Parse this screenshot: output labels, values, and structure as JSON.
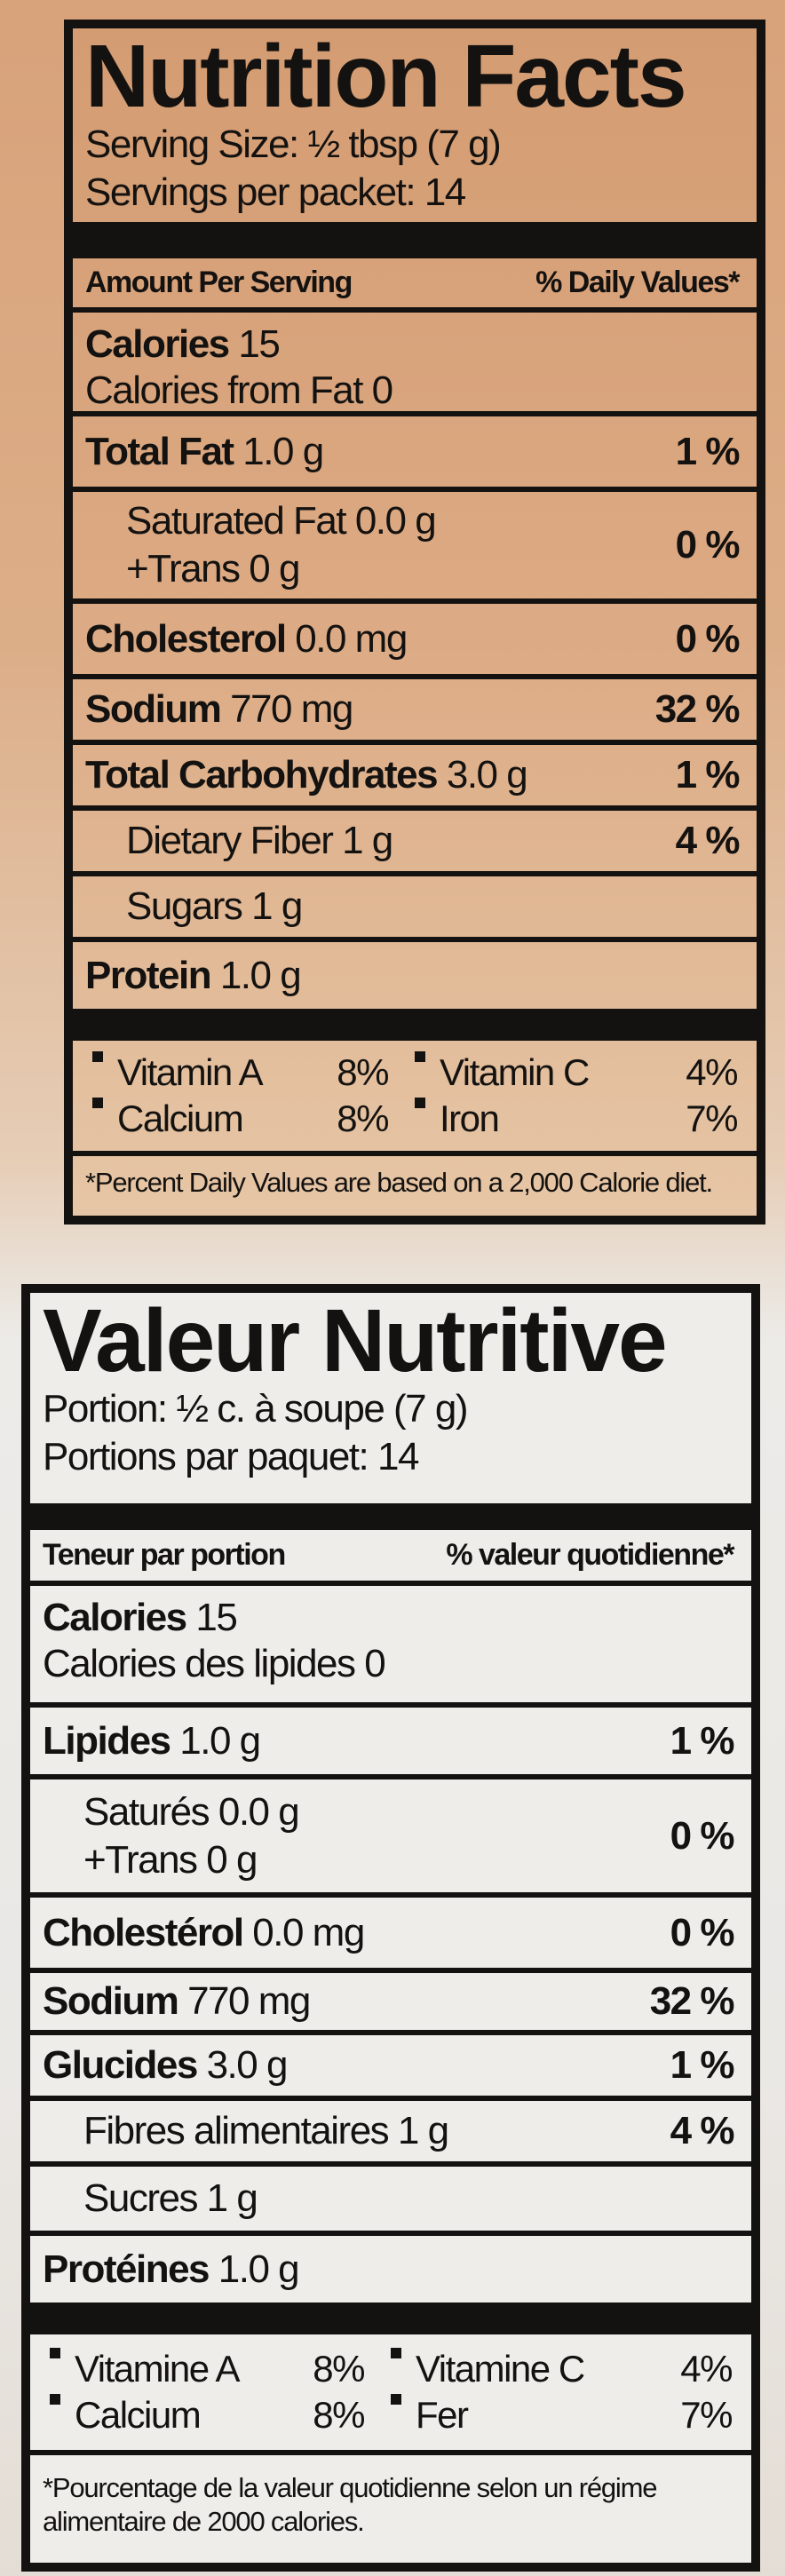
{
  "en": {
    "title": "Nutrition Facts",
    "serving_size": "Serving Size: ½ tbsp (7 g)",
    "servings": "Servings per packet: 14",
    "col_amount": "Amount Per Serving",
    "col_dv": "% Daily Values*",
    "calories": "Calories",
    "calories_value": "15",
    "calories_fat": "Calories from Fat 0",
    "rows": [
      {
        "name": "Total Fat",
        "amount": "1.0 g",
        "dv": "1 %"
      },
      {
        "name": "Saturated Fat 0.0 g",
        "name2": "+Trans 0 g",
        "dv": "0 %"
      },
      {
        "name": "Cholesterol",
        "amount": "0.0 mg",
        "dv": "0 %"
      },
      {
        "name": "Sodium",
        "amount": "770 mg",
        "dv": "32 %"
      },
      {
        "name": "Total Carbohydrates",
        "amount": "3.0 g",
        "dv": "1 %"
      },
      {
        "name": "Dietary Fiber 1 g",
        "dv": "4 %"
      },
      {
        "name": "Sugars 1 g"
      },
      {
        "name": "Protein",
        "amount": "1.0 g"
      }
    ],
    "vitamins": [
      {
        "name": "Vitamin A",
        "value": "8%"
      },
      {
        "name": "Vitamin C",
        "value": "4%"
      },
      {
        "name": "Calcium",
        "value": "8%"
      },
      {
        "name": "Iron",
        "value": "7%"
      }
    ],
    "footnote": "*Percent Daily Values are based on a 2,000 Calorie diet."
  },
  "fr": {
    "title": "Valeur Nutritive",
    "serving_size": "Portion: ½ c. à soupe (7 g)",
    "servings": "Portions par paquet: 14",
    "col_amount": "Teneur par portion",
    "col_dv": "% valeur quotidienne*",
    "calories": "Calories",
    "calories_value": "15",
    "calories_fat": "Calories des lipides 0",
    "rows": [
      {
        "name": "Lipides",
        "amount": "1.0 g",
        "dv": "1 %"
      },
      {
        "name": "Saturés 0.0 g",
        "name2": "+Trans 0 g",
        "dv": "0 %"
      },
      {
        "name": "Cholestérol",
        "amount": "0.0 mg",
        "dv": "0 %"
      },
      {
        "name": "Sodium",
        "amount": "770 mg",
        "dv": "32 %"
      },
      {
        "name": "Glucides",
        "amount": "3.0 g",
        "dv": "1 %"
      },
      {
        "name": "Fibres alimentaires 1 g",
        "dv": "4 %"
      },
      {
        "name": "Sucres 1 g"
      },
      {
        "name": "Protéines",
        "amount": "1.0 g"
      }
    ],
    "vitamins": [
      {
        "name": "Vitamine A",
        "value": "8%"
      },
      {
        "name": "Vitamine C",
        "value": "4%"
      },
      {
        "name": "Calcium",
        "value": "8%"
      },
      {
        "name": "Fer",
        "value": "7%"
      }
    ],
    "footnote": "*Pourcentage de la valeur quotidienne selon un régime alimentaire de 2000 calories."
  }
}
